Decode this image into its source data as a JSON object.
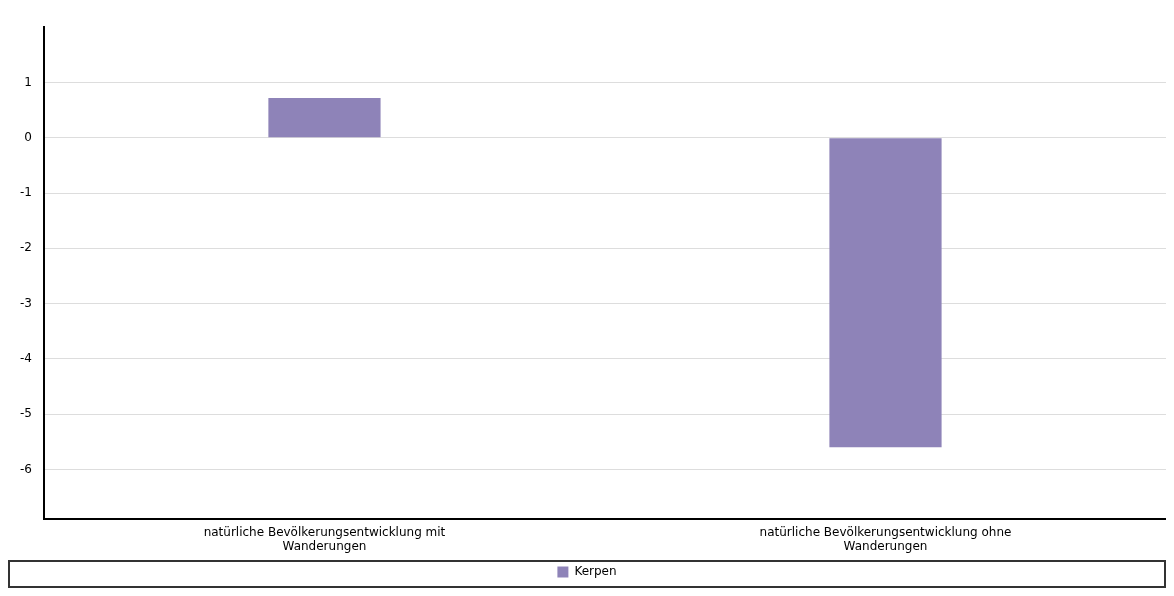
{
  "chart_data": {
    "type": "bar",
    "categories": [
      "natürliche Bevölkerungsentwicklung mit Wanderungen",
      "natürliche Bevölkerungsentwicklung ohne Wanderungen"
    ],
    "series": [
      {
        "name": "Kerpen",
        "color": "#8e83b8",
        "values": [
          0.72,
          -5.6
        ]
      }
    ],
    "ylim": [
      -6.9,
      2
    ],
    "yticks": [
      -6,
      -5,
      -4,
      -3,
      -2,
      -1,
      0,
      1
    ],
    "grid": "y",
    "legend": "bottom"
  }
}
